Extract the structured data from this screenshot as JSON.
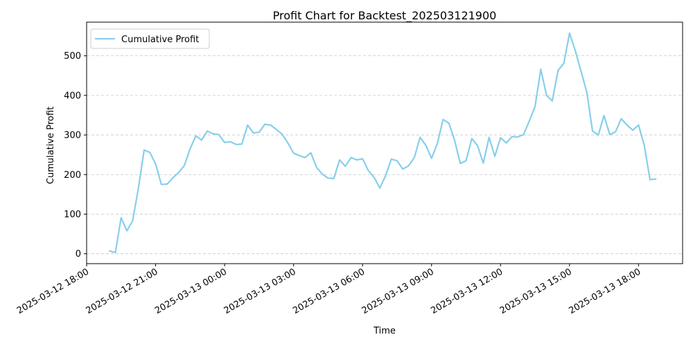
{
  "chart_data": {
    "type": "line",
    "title": "Profit Chart for Backtest_202503121900",
    "xlabel": "Time",
    "ylabel": "Cumulative Profit",
    "x_ticks": [
      "2025-03-12 18:00",
      "2025-03-12 21:00",
      "2025-03-13 00:00",
      "2025-03-13 03:00",
      "2025-03-13 06:00",
      "2025-03-13 09:00",
      "2025-03-13 12:00",
      "2025-03-13 15:00",
      "2025-03-13 18:00"
    ],
    "y_ticks": [
      "0",
      "100",
      "200",
      "300",
      "400",
      "500"
    ],
    "xlim": [
      "2025-03-12 18:00",
      "2025-03-13 19:55"
    ],
    "ylim": [
      -25,
      585
    ],
    "grid": "horizontal dashed",
    "legend": "upper left",
    "series": [
      {
        "name": "Cumulative Profit",
        "color": "#87ceeb",
        "x": [
          "2025-03-12 19:00",
          "2025-03-12 19:15",
          "2025-03-12 19:30",
          "2025-03-12 19:45",
          "2025-03-12 20:00",
          "2025-03-12 20:15",
          "2025-03-12 20:30",
          "2025-03-12 20:45",
          "2025-03-12 21:00",
          "2025-03-12 21:15",
          "2025-03-12 21:30",
          "2025-03-12 21:45",
          "2025-03-12 22:00",
          "2025-03-12 22:15",
          "2025-03-12 22:30",
          "2025-03-12 22:45",
          "2025-03-12 23:00",
          "2025-03-12 23:15",
          "2025-03-12 23:30",
          "2025-03-12 23:45",
          "2025-03-13 00:00",
          "2025-03-13 00:15",
          "2025-03-13 00:30",
          "2025-03-13 00:45",
          "2025-03-13 01:00",
          "2025-03-13 01:15",
          "2025-03-13 01:30",
          "2025-03-13 01:45",
          "2025-03-13 02:00",
          "2025-03-13 02:15",
          "2025-03-13 02:30",
          "2025-03-13 02:45",
          "2025-03-13 03:00",
          "2025-03-13 03:15",
          "2025-03-13 03:30",
          "2025-03-13 03:45",
          "2025-03-13 04:00",
          "2025-03-13 04:15",
          "2025-03-13 04:30",
          "2025-03-13 04:45",
          "2025-03-13 05:00",
          "2025-03-13 05:15",
          "2025-03-13 05:30",
          "2025-03-13 05:45",
          "2025-03-13 06:00",
          "2025-03-13 06:15",
          "2025-03-13 06:30",
          "2025-03-13 06:45",
          "2025-03-13 07:00",
          "2025-03-13 07:15",
          "2025-03-13 07:30",
          "2025-03-13 07:45",
          "2025-03-13 08:00",
          "2025-03-13 08:15",
          "2025-03-13 08:30",
          "2025-03-13 08:45",
          "2025-03-13 09:00",
          "2025-03-13 09:15",
          "2025-03-13 09:30",
          "2025-03-13 09:45",
          "2025-03-13 10:00",
          "2025-03-13 10:15",
          "2025-03-13 10:30",
          "2025-03-13 10:45",
          "2025-03-13 11:00",
          "2025-03-13 11:15",
          "2025-03-13 11:30",
          "2025-03-13 11:45",
          "2025-03-13 12:00",
          "2025-03-13 12:15",
          "2025-03-13 12:30",
          "2025-03-13 12:45",
          "2025-03-13 13:00",
          "2025-03-13 13:15",
          "2025-03-13 13:30",
          "2025-03-13 13:45",
          "2025-03-13 14:00",
          "2025-03-13 14:15",
          "2025-03-13 14:30",
          "2025-03-13 14:45",
          "2025-03-13 15:00",
          "2025-03-13 15:15",
          "2025-03-13 15:30",
          "2025-03-13 15:45",
          "2025-03-13 16:00",
          "2025-03-13 16:15",
          "2025-03-13 16:30",
          "2025-03-13 16:45",
          "2025-03-13 17:00",
          "2025-03-13 17:15",
          "2025-03-13 17:30",
          "2025-03-13 17:45",
          "2025-03-13 18:00",
          "2025-03-13 18:15",
          "2025-03-13 18:30",
          "2025-03-13 18:45"
        ],
        "y": [
          7,
          3,
          91,
          58,
          83,
          165,
          262,
          256,
          227,
          175,
          176,
          192,
          205,
          223,
          265,
          298,
          287,
          310,
          303,
          301,
          281,
          283,
          276,
          277,
          325,
          305,
          307,
          327,
          325,
          314,
          302,
          280,
          254,
          248,
          243,
          255,
          218,
          201,
          191,
          190,
          237,
          221,
          243,
          237,
          240,
          210,
          193,
          166,
          197,
          239,
          235,
          214,
          222,
          243,
          294,
          274,
          241,
          278,
          339,
          330,
          287,
          228,
          235,
          291,
          273,
          229,
          294,
          246,
          293,
          280,
          296,
          295,
          301,
          335,
          372,
          466,
          400,
          386,
          463,
          481,
          557,
          513,
          461,
          408,
          310,
          300,
          349,
          301,
          308,
          341,
          325,
          312,
          325,
          274,
          187,
          189
        ]
      }
    ]
  }
}
